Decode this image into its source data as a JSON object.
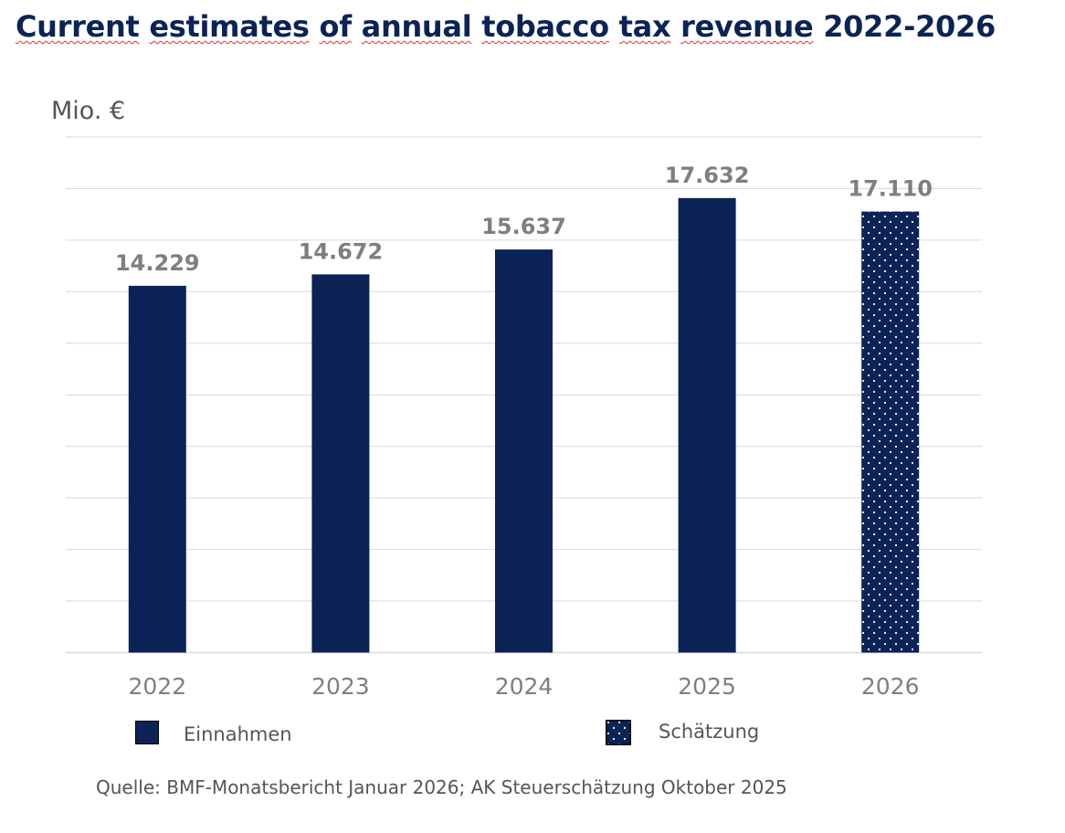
{
  "title_words": [
    "Current",
    "estimates",
    "of",
    "annual",
    "tobacco",
    "tax",
    "revenue",
    "2022-2026"
  ],
  "unit_label": "Mio. €",
  "source_text": "Quelle:  BMF-Monatsbericht Januar 2026; AK Steuerschätzung Oktober 2025",
  "legend": [
    {
      "label": "Einnahmen",
      "pattern": "solid"
    },
    {
      "label": "Schätzung",
      "pattern": "dotted"
    }
  ],
  "colors": {
    "bar": "#0b2356",
    "grid": "#d9d9d9",
    "value_label": "#7f7f7f",
    "axis_label": "#7f7f7f",
    "title": "#0b2356"
  },
  "chart_data": {
    "type": "bar",
    "title": "Current estimates of annual tobacco tax revenue 2022-2026",
    "ylabel": "Mio. €",
    "categories": [
      "2022",
      "2023",
      "2024",
      "2025",
      "2026"
    ],
    "values": [
      14229,
      14672,
      15637,
      17632,
      17110
    ],
    "value_labels": [
      "14.229",
      "14.672",
      "15.637",
      "17.632",
      "17.110"
    ],
    "estimate": [
      false,
      false,
      false,
      false,
      true
    ],
    "ylim": [
      0,
      20000
    ],
    "grid": true,
    "y_tick_labels_shown": false,
    "legend_position": "bottom"
  }
}
